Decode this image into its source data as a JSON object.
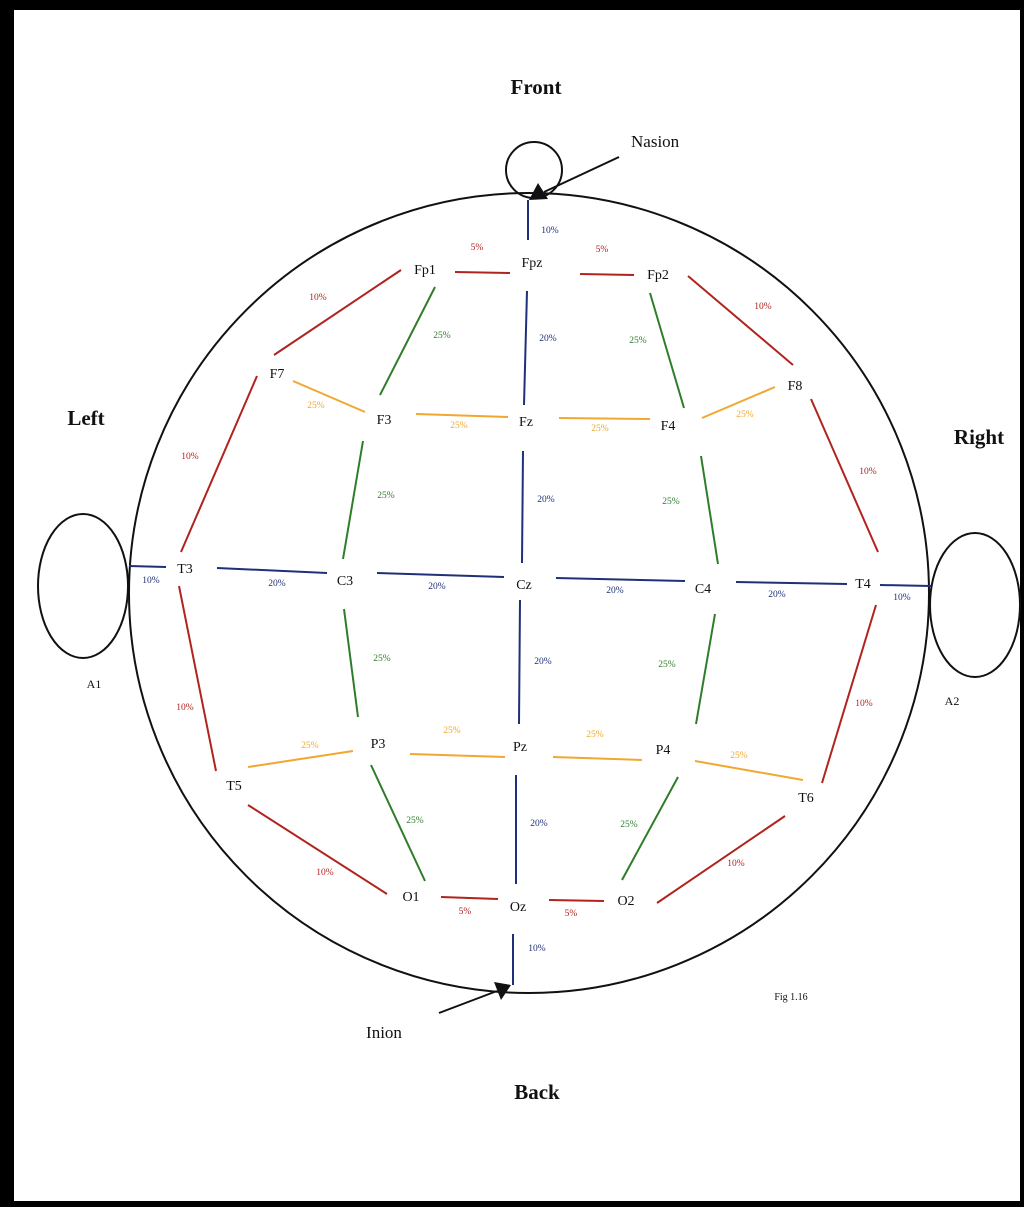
{
  "directions": {
    "front": "Front",
    "back": "Back",
    "left": "Left",
    "right": "Right"
  },
  "landmarks": {
    "nasion": "Nasion",
    "inion": "Inion"
  },
  "ears": {
    "left": "A1",
    "right": "A2"
  },
  "figure_label": "Fig 1.16",
  "colors": {
    "red": "#b0231e",
    "green": "#2f7d2a",
    "orange": "#f0a830",
    "blue": "#1f2f78",
    "outline": "#111111"
  },
  "electrodes": [
    {
      "id": "Fp1",
      "label": "Fp1"
    },
    {
      "id": "Fpz",
      "label": "Fpz"
    },
    {
      "id": "Fp2",
      "label": "Fp2"
    },
    {
      "id": "F7",
      "label": "F7"
    },
    {
      "id": "F3",
      "label": "F3"
    },
    {
      "id": "Fz",
      "label": "Fz"
    },
    {
      "id": "F4",
      "label": "F4"
    },
    {
      "id": "F8",
      "label": "F8"
    },
    {
      "id": "T3",
      "label": "T3"
    },
    {
      "id": "C3",
      "label": "C3"
    },
    {
      "id": "Cz",
      "label": "Cz"
    },
    {
      "id": "C4",
      "label": "C4"
    },
    {
      "id": "T4",
      "label": "T4"
    },
    {
      "id": "T5",
      "label": "T5"
    },
    {
      "id": "P3",
      "label": "P3"
    },
    {
      "id": "Pz",
      "label": "Pz"
    },
    {
      "id": "P4",
      "label": "P4"
    },
    {
      "id": "T6",
      "label": "T6"
    },
    {
      "id": "O1",
      "label": "O1"
    },
    {
      "id": "Oz",
      "label": "Oz"
    },
    {
      "id": "O2",
      "label": "O2"
    }
  ],
  "segments": [
    {
      "from": "Nasion",
      "to": "Fpz",
      "percent": "10%",
      "color": "blue"
    },
    {
      "from": "Fp1",
      "to": "Fpz",
      "percent": "5%",
      "color": "red"
    },
    {
      "from": "Fpz",
      "to": "Fp2",
      "percent": "5%",
      "color": "red"
    },
    {
      "from": "Fp1",
      "to": "F7",
      "percent": "10%",
      "color": "red"
    },
    {
      "from": "Fp2",
      "to": "F8",
      "percent": "10%",
      "color": "red"
    },
    {
      "from": "Fp1",
      "to": "F3",
      "percent": "25%",
      "color": "green"
    },
    {
      "from": "Fpz",
      "to": "Fz",
      "percent": "20%",
      "color": "blue"
    },
    {
      "from": "Fp2",
      "to": "F4",
      "percent": "25%",
      "color": "green"
    },
    {
      "from": "F7",
      "to": "F3",
      "percent": "25%",
      "color": "orange"
    },
    {
      "from": "F3",
      "to": "Fz",
      "percent": "25%",
      "color": "orange"
    },
    {
      "from": "Fz",
      "to": "F4",
      "percent": "25%",
      "color": "orange"
    },
    {
      "from": "F4",
      "to": "F8",
      "percent": "25%",
      "color": "orange"
    },
    {
      "from": "F7",
      "to": "T3",
      "percent": "10%",
      "color": "red"
    },
    {
      "from": "F8",
      "to": "T4",
      "percent": "10%",
      "color": "red"
    },
    {
      "from": "F3",
      "to": "C3",
      "percent": "25%",
      "color": "green"
    },
    {
      "from": "Fz",
      "to": "Cz",
      "percent": "20%",
      "color": "blue"
    },
    {
      "from": "F4",
      "to": "C4",
      "percent": "25%",
      "color": "green"
    },
    {
      "from": "A1",
      "to": "T3",
      "percent": "10%",
      "color": "blue"
    },
    {
      "from": "T3",
      "to": "C3",
      "percent": "20%",
      "color": "blue"
    },
    {
      "from": "C3",
      "to": "Cz",
      "percent": "20%",
      "color": "blue"
    },
    {
      "from": "Cz",
      "to": "C4",
      "percent": "20%",
      "color": "blue"
    },
    {
      "from": "C4",
      "to": "T4",
      "percent": "20%",
      "color": "blue"
    },
    {
      "from": "T4",
      "to": "A2",
      "percent": "10%",
      "color": "blue"
    },
    {
      "from": "T3",
      "to": "T5",
      "percent": "10%",
      "color": "red"
    },
    {
      "from": "T4",
      "to": "T6",
      "percent": "10%",
      "color": "red"
    },
    {
      "from": "C3",
      "to": "P3",
      "percent": "25%",
      "color": "green"
    },
    {
      "from": "Cz",
      "to": "Pz",
      "percent": "20%",
      "color": "blue"
    },
    {
      "from": "C4",
      "to": "P4",
      "percent": "25%",
      "color": "green"
    },
    {
      "from": "T5",
      "to": "P3",
      "percent": "25%",
      "color": "orange"
    },
    {
      "from": "P3",
      "to": "Pz",
      "percent": "25%",
      "color": "orange"
    },
    {
      "from": "Pz",
      "to": "P4",
      "percent": "25%",
      "color": "orange"
    },
    {
      "from": "P4",
      "to": "T6",
      "percent": "25%",
      "color": "orange"
    },
    {
      "from": "T5",
      "to": "O1",
      "percent": "10%",
      "color": "red"
    },
    {
      "from": "T6",
      "to": "O2",
      "percent": "10%",
      "color": "red"
    },
    {
      "from": "P3",
      "to": "O1",
      "percent": "25%",
      "color": "green"
    },
    {
      "from": "Pz",
      "to": "Oz",
      "percent": "20%",
      "color": "blue"
    },
    {
      "from": "P4",
      "to": "O2",
      "percent": "25%",
      "color": "green"
    },
    {
      "from": "O1",
      "to": "Oz",
      "percent": "5%",
      "color": "red"
    },
    {
      "from": "Oz",
      "to": "O2",
      "percent": "5%",
      "color": "red"
    },
    {
      "from": "Oz",
      "to": "Inion",
      "percent": "10%",
      "color": "blue"
    }
  ]
}
